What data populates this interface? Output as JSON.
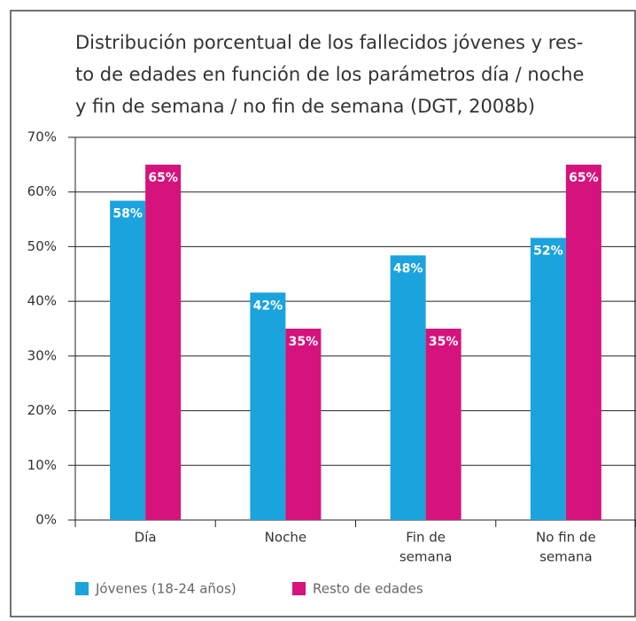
{
  "chart_data": {
    "type": "bar",
    "title": [
      "Distribución porcentual de los fallecidos jóvenes y res-",
      "to de edades en función de los parámetros día / noche",
      "y fin de semana / no fin de semana (DGT, 2008b)"
    ],
    "categories": [
      [
        "Día"
      ],
      [
        "Noche"
      ],
      [
        "Fin de",
        "semana"
      ],
      [
        "No fin de",
        "semana"
      ]
    ],
    "series": [
      {
        "name": "Jóvenes (18-24 años)",
        "color": "#1ba3dd",
        "values": [
          58.4,
          41.6,
          48.4,
          51.6
        ],
        "value_labels": [
          "58%",
          "42%",
          "48%",
          "52%"
        ]
      },
      {
        "name": "Resto de edades",
        "color": "#d6127c",
        "values": [
          65,
          35,
          35,
          65
        ],
        "value_labels": [
          "65%",
          "35%",
          "35%",
          "65%"
        ]
      }
    ],
    "ylim": [
      0,
      70
    ],
    "yticks": [
      {
        "value": 0,
        "label": "0%"
      },
      {
        "value": 10,
        "label": "10%"
      },
      {
        "value": 20,
        "label": "20%"
      },
      {
        "value": 30,
        "label": "30%"
      },
      {
        "value": 40,
        "label": "40%"
      },
      {
        "value": 50,
        "label": "50%"
      },
      {
        "value": 60,
        "label": "60%"
      },
      {
        "value": 70,
        "label": "70%"
      }
    ],
    "grid": true
  }
}
